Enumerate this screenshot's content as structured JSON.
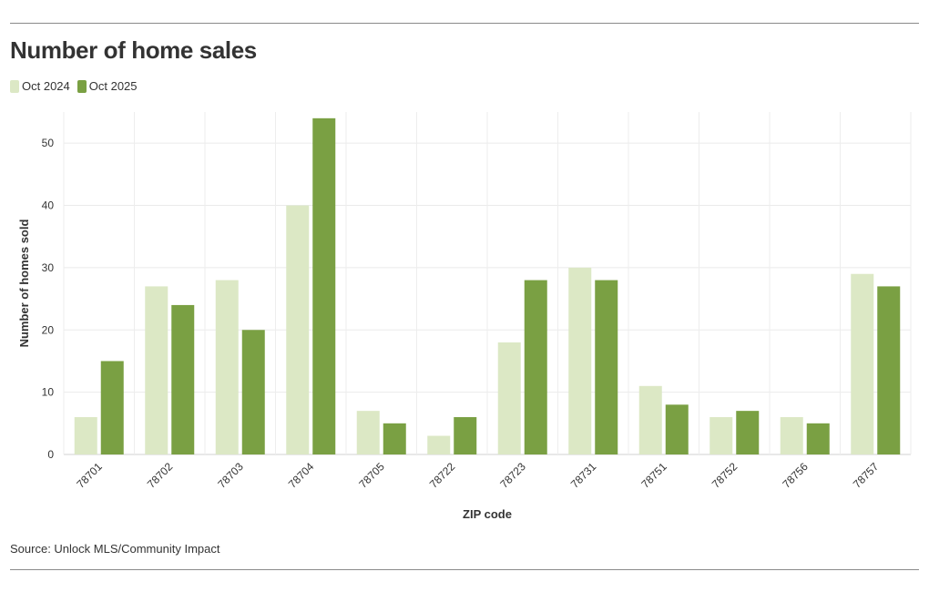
{
  "header": {
    "title": "Number of home sales"
  },
  "legend": [
    {
      "label": "Oct 2024",
      "color": "#dce8c5"
    },
    {
      "label": "Oct 2025",
      "color": "#7aa043"
    }
  ],
  "footer": {
    "source": "Source: Unlock MLS/Community Impact"
  },
  "chart_data": {
    "type": "bar",
    "title": "Number of home sales",
    "xlabel": "ZIP code",
    "ylabel": "Number of homes sold",
    "ylim": [
      0,
      55
    ],
    "yticks": [
      0,
      10,
      20,
      30,
      40,
      50
    ],
    "grid": true,
    "legend_position": "top-left",
    "categories": [
      "78701",
      "78702",
      "78703",
      "78704",
      "78705",
      "78722",
      "78723",
      "78731",
      "78751",
      "78752",
      "78756",
      "78757"
    ],
    "series": [
      {
        "name": "Oct 2024",
        "color": "#dce8c5",
        "values": [
          6,
          27,
          28,
          40,
          7,
          3,
          18,
          30,
          11,
          6,
          6,
          29
        ]
      },
      {
        "name": "Oct 2025",
        "color": "#7aa043",
        "values": [
          15,
          24,
          20,
          54,
          5,
          6,
          28,
          28,
          8,
          7,
          5,
          27
        ]
      }
    ]
  }
}
